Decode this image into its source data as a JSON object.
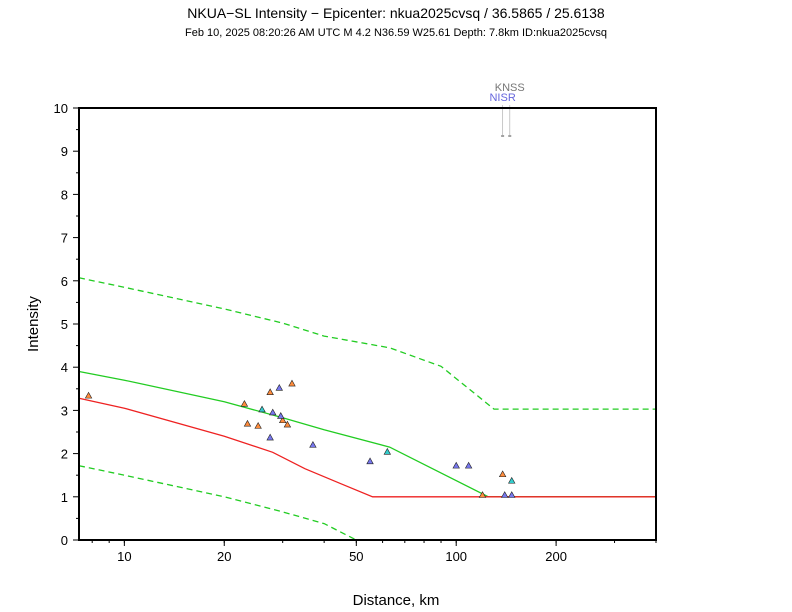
{
  "title": "NKUA−SL Intensity −  Epicenter: nkua2025cvsq / 36.5865 / 25.6138",
  "subtitle": "Feb 10, 2025 08:20:26 AM UTC   M 4.2   N36.59 W25.61   Depth: 7.8km   ID:nkua2025cvsq",
  "chart_data": {
    "type": "scatter",
    "xlabel": "Distance, km",
    "ylabel": "Intensity",
    "x_scale": "log",
    "xlim": [
      7.3,
      400
    ],
    "ylim": [
      0,
      10
    ],
    "x_ticks": [
      10,
      20,
      50,
      100,
      200
    ],
    "y_ticks": [
      0,
      1,
      2,
      3,
      4,
      5,
      6,
      7,
      8,
      9,
      10
    ],
    "grid": false,
    "colors": {
      "prediction": "#22cc22",
      "alternate_prediction": "#ee2222",
      "orange_stations": "#ff8c3c",
      "blue_stations": "#7777ee",
      "cyan_stations": "#33cccc",
      "knss_label": "#777777",
      "nisr_label": "#6666dd"
    },
    "series": [
      {
        "style": "solid-green",
        "x": [
          7.3,
          10,
          20,
          30,
          40,
          63,
          125,
          400
        ],
        "y": [
          3.9,
          3.7,
          3.2,
          2.83,
          2.55,
          2.15,
          1.0,
          1.0
        ]
      },
      {
        "style": "dashed-green-upper",
        "x": [
          7.3,
          10,
          20,
          30,
          40,
          63,
          90,
          130,
          400
        ],
        "y": [
          6.07,
          5.85,
          5.35,
          5.02,
          4.72,
          4.45,
          4.02,
          3.03,
          3.03
        ]
      },
      {
        "style": "dashed-green-lower",
        "x": [
          7.3,
          10,
          20,
          30,
          40,
          50
        ],
        "y": [
          1.72,
          1.5,
          1.0,
          0.65,
          0.38,
          0.0
        ]
      },
      {
        "style": "solid-red",
        "x": [
          7.3,
          10,
          20,
          28,
          35,
          45,
          56,
          400
        ],
        "y": [
          3.28,
          3.05,
          2.4,
          2.03,
          1.65,
          1.3,
          1.0,
          1.0
        ]
      }
    ],
    "points": [
      {
        "x": 7.8,
        "y": 3.32,
        "group": "orange"
      },
      {
        "x": 23,
        "y": 3.13,
        "group": "orange"
      },
      {
        "x": 23.5,
        "y": 2.67,
        "group": "orange"
      },
      {
        "x": 25.3,
        "y": 2.62,
        "group": "orange"
      },
      {
        "x": 27.5,
        "y": 3.4,
        "group": "orange"
      },
      {
        "x": 30,
        "y": 2.75,
        "group": "orange"
      },
      {
        "x": 31,
        "y": 2.65,
        "group": "orange"
      },
      {
        "x": 32,
        "y": 3.6,
        "group": "orange"
      },
      {
        "x": 26,
        "y": 3.0,
        "group": "cyan"
      },
      {
        "x": 27.5,
        "y": 2.35,
        "group": "blue"
      },
      {
        "x": 28,
        "y": 2.93,
        "group": "blue"
      },
      {
        "x": 29.3,
        "y": 3.5,
        "group": "blue"
      },
      {
        "x": 29.6,
        "y": 2.85,
        "group": "blue"
      },
      {
        "x": 37,
        "y": 2.18,
        "group": "blue"
      },
      {
        "x": 55,
        "y": 1.8,
        "group": "blue"
      },
      {
        "x": 62,
        "y": 2.02,
        "group": "cyan"
      },
      {
        "x": 100,
        "y": 1.7,
        "group": "blue"
      },
      {
        "x": 109,
        "y": 1.7,
        "group": "blue"
      },
      {
        "x": 120,
        "y": 1.02,
        "group": "orange"
      },
      {
        "x": 138,
        "y": 1.5,
        "group": "orange"
      },
      {
        "x": 140,
        "y": 1.02,
        "group": "blue"
      },
      {
        "x": 147,
        "y": 1.35,
        "group": "cyan"
      },
      {
        "x": 147,
        "y": 1.02,
        "group": "blue"
      }
    ],
    "station_labels": [
      {
        "text": "KNSS",
        "x": 145,
        "group": "knss_label"
      },
      {
        "text": "NISR",
        "x": 138,
        "group": "nisr_label"
      }
    ]
  }
}
